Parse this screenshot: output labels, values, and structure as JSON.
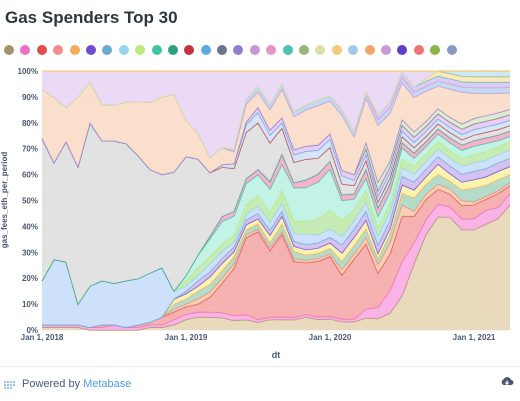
{
  "title": "Gas Spenders Top 30",
  "footer": {
    "powered_by": "Powered by",
    "brand": "Metabase",
    "download_icon": "cloud-download-icon",
    "brand_icon": "metabase-logo-icon"
  },
  "chart_data": {
    "type": "area",
    "stacked": "normalized-100%",
    "xlabel": "dt",
    "ylabel": "gas_fees_eth_per_period",
    "ylim": [
      0,
      100
    ],
    "y_ticks": [
      "0%",
      "10%",
      "20%",
      "30%",
      "40%",
      "50%",
      "60%",
      "70%",
      "80%",
      "90%",
      "100%"
    ],
    "x_ticks": [
      {
        "label": "Jan 1, 2018",
        "month": 0
      },
      {
        "label": "Jan 1, 2019",
        "month": 12
      },
      {
        "label": "Jan 1, 2020",
        "month": 24
      },
      {
        "label": "Jan 1, 2021",
        "month": 36
      }
    ],
    "x_month_range": [
      0,
      39
    ],
    "legend_colors": [
      "#a7926b",
      "#ef6fc4",
      "#e04b4b",
      "#f48a8a",
      "#f3ad59",
      "#6e4bd1",
      "#6aa9cf",
      "#98d3f2",
      "#b9ed7b",
      "#3fc79f",
      "#2f9f7e",
      "#c1313e",
      "#5fa8e6",
      "#6c7590",
      "#8e7ed4",
      "#c497d6",
      "#e596c4",
      "#4fc0b4",
      "#97b77a",
      "#d9e2a0",
      "#f7c97a",
      "#a5c9ed",
      "#f2a66b",
      "#c99ad8",
      "#5e3fc9",
      "#f07575",
      "#88b44c",
      "#8a99c2"
    ],
    "series_colors": [
      "#e6d4b2",
      "#f9a6e0",
      "#f5a3a3",
      "#f7c8a5",
      "#a8d5c0",
      "#f9f1a0",
      "#ccb9f0",
      "#c4dcf9",
      "#bce8a8",
      "#b8f0e3",
      "#f5a3c8",
      "#dddddd",
      "#cce2f5",
      "#e8c6f2",
      "#d7e8c6",
      "#f9d9c4",
      "#b9d4f0",
      "#d0c4f5",
      "#fbe4b0",
      "#bfe6f5",
      "#e8d4f5"
    ],
    "series_values": [
      [
        1,
        1,
        1,
        1,
        0,
        0,
        0,
        0,
        0,
        1,
        1,
        2,
        4,
        5,
        5,
        5,
        4,
        4,
        3,
        4,
        4,
        4,
        5,
        4,
        4,
        3,
        3,
        4,
        4,
        6,
        12,
        25,
        38,
        45,
        44,
        38,
        36,
        38,
        40,
        46
      ],
      [
        1,
        1,
        1,
        1,
        1,
        1,
        2,
        1,
        1,
        1,
        1,
        2,
        2,
        2,
        2,
        2,
        2,
        2,
        1,
        1,
        1,
        1,
        1,
        1,
        1,
        1,
        1,
        3,
        4,
        8,
        12,
        8,
        6,
        5,
        4,
        4,
        4,
        5,
        4,
        4
      ],
      [
        0,
        0,
        0,
        0,
        0,
        1,
        0,
        0,
        1,
        1,
        3,
        3,
        3,
        3,
        6,
        12,
        20,
        30,
        34,
        26,
        32,
        22,
        20,
        21,
        22,
        16,
        22,
        22,
        12,
        13,
        16,
        10,
        8,
        6,
        5,
        5,
        5,
        4,
        5,
        3
      ],
      [
        0,
        0,
        0,
        0,
        0,
        0,
        0,
        0,
        0,
        0,
        0,
        1,
        1,
        2,
        2,
        2,
        2,
        1,
        1,
        1,
        1,
        1,
        1,
        1,
        1,
        2,
        2,
        2,
        3,
        4,
        4,
        2,
        2,
        2,
        2,
        2,
        1,
        1,
        1,
        1
      ],
      [
        0,
        0,
        0,
        0,
        0,
        0,
        0,
        0,
        0,
        0,
        0,
        2,
        2,
        3,
        3,
        3,
        3,
        2,
        2,
        2,
        3,
        3,
        2,
        2,
        2,
        3,
        3,
        3,
        2,
        3,
        4,
        5,
        4,
        4,
        3,
        4,
        5,
        4,
        4,
        3
      ],
      [
        0,
        0,
        0,
        0,
        0,
        0,
        0,
        0,
        0,
        0,
        0,
        2,
        2,
        2,
        3,
        3,
        2,
        2,
        2,
        3,
        3,
        2,
        2,
        2,
        2,
        3,
        3,
        3,
        2,
        2,
        3,
        3,
        3,
        4,
        3,
        3,
        3,
        3,
        3,
        3
      ],
      [
        0,
        0,
        0,
        0,
        0,
        0,
        0,
        0,
        0,
        0,
        0,
        0,
        1,
        2,
        2,
        2,
        2,
        2,
        2,
        2,
        2,
        2,
        2,
        2,
        2,
        3,
        3,
        3,
        3,
        3,
        3,
        3,
        3,
        3,
        3,
        3,
        3,
        3,
        3,
        3
      ],
      [
        17,
        25,
        24,
        8,
        16,
        17,
        16,
        18,
        18,
        19,
        19,
        3,
        2,
        2,
        3,
        3,
        2,
        2,
        3,
        3,
        3,
        3,
        4,
        3,
        3,
        3,
        3,
        3,
        3,
        3,
        3,
        3,
        3,
        3,
        3,
        3,
        3,
        3,
        3,
        3
      ],
      [
        0,
        0,
        0,
        0,
        0,
        0,
        0,
        0,
        0,
        0,
        0,
        0,
        2,
        3,
        3,
        3,
        3,
        4,
        4,
        4,
        5,
        5,
        5,
        6,
        7,
        6,
        4,
        4,
        3,
        3,
        3,
        3,
        3,
        3,
        3,
        3,
        3,
        3,
        3,
        3
      ],
      [
        0,
        0,
        0,
        0,
        0,
        0,
        0,
        0,
        0,
        0,
        0,
        0,
        2,
        5,
        7,
        9,
        8,
        8,
        8,
        9,
        10,
        13,
        13,
        14,
        15,
        7,
        4,
        4,
        4,
        4,
        4,
        3,
        3,
        3,
        3,
        3,
        3,
        3,
        2,
        2
      ],
      [
        0,
        0,
        0,
        0,
        0,
        0,
        0,
        0,
        0,
        0,
        0,
        0,
        0,
        0,
        1,
        2,
        2,
        2,
        2,
        3,
        4,
        2,
        3,
        3,
        3,
        2,
        2,
        3,
        3,
        3,
        2,
        2,
        2,
        2,
        2,
        2,
        2,
        2,
        2,
        2
      ],
      [
        55,
        37,
        46,
        53,
        63,
        54,
        55,
        53,
        48,
        40,
        36,
        46,
        46,
        37,
        25,
        20,
        18,
        18,
        18,
        15,
        10,
        8,
        8,
        6,
        5,
        4,
        3,
        3,
        2,
        2,
        2,
        2,
        2,
        2,
        2,
        2,
        2,
        2,
        2,
        2
      ],
      [
        0,
        0,
        0,
        0,
        0,
        0,
        0,
        0,
        0,
        0,
        0,
        0,
        0,
        0,
        0,
        1,
        2,
        3,
        4,
        3,
        2,
        3,
        3,
        3,
        3,
        3,
        2,
        2,
        2,
        2,
        2,
        2,
        2,
        2,
        2,
        2,
        2,
        2,
        2,
        2
      ],
      [
        0,
        0,
        0,
        0,
        0,
        0,
        0,
        0,
        0,
        0,
        0,
        0,
        0,
        0,
        0,
        0,
        0,
        1,
        2,
        2,
        2,
        2,
        2,
        2,
        2,
        2,
        2,
        2,
        2,
        2,
        2,
        2,
        2,
        2,
        2,
        2,
        2,
        2,
        2,
        2
      ],
      [
        0,
        0,
        0,
        0,
        0,
        0,
        0,
        0,
        0,
        0,
        0,
        0,
        0,
        0,
        0,
        0,
        0,
        0,
        0,
        0,
        0,
        0,
        0,
        0,
        0,
        0,
        0,
        2,
        3,
        2,
        2,
        2,
        2,
        2,
        2,
        2,
        2,
        2,
        2,
        2
      ],
      [
        19,
        25,
        13,
        27,
        16,
        14,
        14,
        16,
        21,
        26,
        30,
        30,
        14,
        10,
        6,
        7,
        5,
        7,
        6,
        8,
        11,
        13,
        14,
        15,
        12,
        20,
        14,
        15,
        20,
        17,
        13,
        13,
        12,
        9,
        11,
        12,
        9,
        8,
        7,
        6
      ],
      [
        0,
        0,
        0,
        0,
        0,
        0,
        0,
        0,
        0,
        0,
        0,
        0,
        0,
        0,
        0,
        0,
        1,
        2,
        2,
        2,
        2,
        2,
        2,
        2,
        2,
        2,
        2,
        2,
        2,
        2,
        2,
        2,
        2,
        2,
        2,
        2,
        2,
        2,
        2,
        2
      ],
      [
        0,
        0,
        0,
        0,
        0,
        0,
        0,
        0,
        0,
        0,
        0,
        0,
        0,
        0,
        0,
        0,
        0,
        0,
        0,
        0,
        0,
        0,
        0,
        0,
        0,
        0,
        0,
        0,
        2,
        2,
        2,
        2,
        2,
        2,
        2,
        2,
        2,
        2,
        2,
        2
      ],
      [
        0,
        0,
        0,
        0,
        0,
        0,
        0,
        0,
        0,
        0,
        0,
        0,
        0,
        0,
        0,
        0,
        0,
        0,
        0,
        0,
        0,
        0,
        0,
        0,
        0,
        0,
        0,
        0,
        0,
        0,
        0,
        0,
        1,
        2,
        2,
        2,
        2,
        2,
        2,
        2
      ],
      [
        0,
        0,
        0,
        0,
        0,
        0,
        0,
        0,
        0,
        0,
        0,
        0,
        0,
        0,
        0,
        0,
        0,
        0,
        0,
        0,
        0,
        0,
        0,
        0,
        0,
        0,
        0,
        0,
        0,
        0,
        0,
        0,
        0,
        0,
        1,
        2,
        2,
        2,
        2,
        2
      ],
      [
        7,
        10,
        14,
        10,
        4,
        13,
        13,
        12,
        12,
        12,
        10,
        9,
        19,
        24,
        34,
        31,
        33,
        11,
        6,
        13,
        5,
        16,
        13,
        11,
        9,
        14,
        22,
        7,
        15,
        11,
        0,
        6,
        3,
        0,
        0,
        0,
        0,
        0,
        0,
        0
      ]
    ]
  }
}
